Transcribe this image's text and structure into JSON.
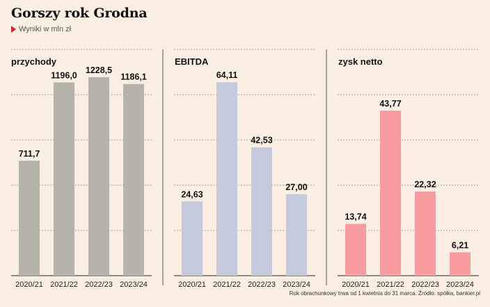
{
  "header": {
    "title": "Gorszy rok Grodna",
    "subtitle": "Wyniki w mln zł"
  },
  "footer": {
    "note": "Rok obrachunkowy trwa od 1 kwietnia do 31 marca. Źródło: spółka, bankier.pl"
  },
  "colors": {
    "background": "#fbeee2",
    "przychody": "#b6b4a8",
    "ebitda": "#c4c9db",
    "zysk": "#f99c9f",
    "accent_arrow": "#d7262b"
  },
  "chart_data": [
    {
      "type": "bar",
      "title": "przychody",
      "categories": [
        "2020/21",
        "2021/22",
        "2022/23",
        "2023/24"
      ],
      "values": [
        711.7,
        1196.0,
        1228.5,
        1186.1
      ],
      "value_labels": [
        "711,7",
        "1196,0",
        "1228,5",
        "1186,1"
      ],
      "ylim": [
        0,
        1400
      ],
      "grid": true
    },
    {
      "type": "bar",
      "title": "EBITDA",
      "categories": [
        "2020/21",
        "2021/22",
        "2022/23",
        "2023/24"
      ],
      "values": [
        24.63,
        64.11,
        42.53,
        27.0
      ],
      "value_labels": [
        "24,63",
        "64,11",
        "42,53",
        "27,00"
      ],
      "ylim": [
        0,
        75
      ],
      "grid": true
    },
    {
      "type": "bar",
      "title": "zysk netto",
      "categories": [
        "2020/21",
        "2021/22",
        "2022/23",
        "2023/24"
      ],
      "values": [
        13.74,
        43.77,
        22.32,
        6.21
      ],
      "value_labels": [
        "13,74",
        "43,77",
        "22,32",
        "6,21"
      ],
      "ylim": [
        0,
        60
      ],
      "grid": true
    }
  ]
}
